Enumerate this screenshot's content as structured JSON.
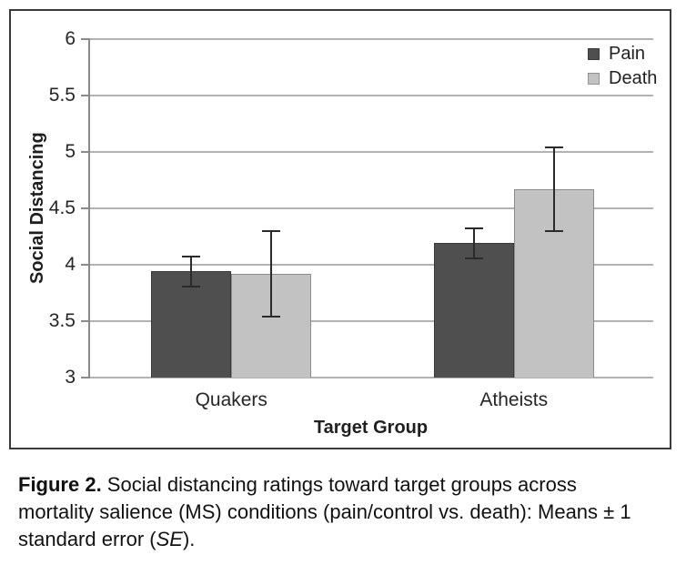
{
  "chart_data": {
    "type": "bar",
    "title": "",
    "xlabel": "Target Group",
    "ylabel": "Social Distancing",
    "ylim": [
      3,
      6
    ],
    "grid": true,
    "legend_position": "top-right",
    "error_bars": "±1 SE",
    "yticks": [
      {
        "value": 6,
        "label": "6"
      },
      {
        "value": 5.5,
        "label": "5.5"
      },
      {
        "value": 5,
        "label": "5"
      },
      {
        "value": 4.5,
        "label": "4.5"
      },
      {
        "value": 4,
        "label": "4"
      },
      {
        "value": 3.5,
        "label": "3.5"
      },
      {
        "value": 3,
        "label": "3"
      }
    ],
    "categories": [
      "Quakers",
      "Atheists"
    ],
    "series": [
      {
        "name": "Pain",
        "color": "#4f4f4f",
        "values": [
          3.94,
          4.19
        ],
        "se": [
          0.13,
          0.13
        ]
      },
      {
        "name": "Death",
        "color": "#c2c2c2",
        "values": [
          3.92,
          4.67
        ],
        "se": [
          0.38,
          0.37
        ]
      }
    ]
  },
  "caption": {
    "lines": [
      [
        {
          "text": "Figure 2.",
          "style": "bold"
        },
        {
          "text": " Social distancing ratings toward target groups across",
          "style": "normal"
        }
      ],
      [
        {
          "text": "mortality salience (MS) conditions (pain/control vs. death): Means ± 1",
          "style": "normal"
        }
      ],
      [
        {
          "text": "standard error (",
          "style": "normal"
        },
        {
          "text": "SE",
          "style": "italic"
        },
        {
          "text": ").",
          "style": "normal"
        }
      ]
    ]
  },
  "colors": {
    "figure_border": "#3a3a3a",
    "gridline": "#b2b2b2",
    "axis_line": "#8a8a8a",
    "error_bar": "#2b2b2b",
    "text": "#1f1f1f"
  }
}
